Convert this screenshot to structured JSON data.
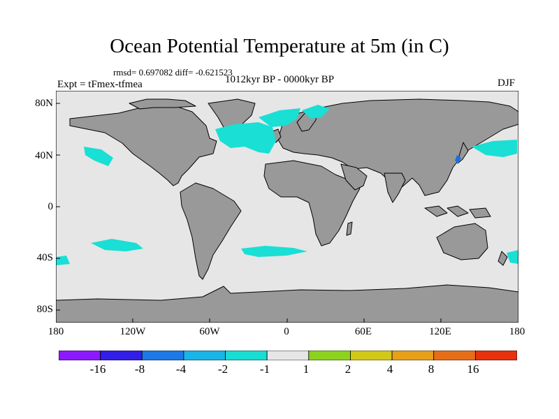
{
  "title": "Ocean Potential Temperature at 5m (in C)",
  "stats": "rmsd= 0.697082 diff= -0.621523",
  "period": "1012kyr BP - 0000kyr BP",
  "experiment": "Expt = tFmex-tfmea",
  "season": "DJF",
  "map": {
    "projection": "cylindrical-equidistant",
    "lon_range": [
      -180,
      180
    ],
    "lat_range": [
      -90,
      90
    ],
    "lat_ticks": [
      {
        "value": 80,
        "label": "80N"
      },
      {
        "value": 40,
        "label": "40N"
      },
      {
        "value": 0,
        "label": "0"
      },
      {
        "value": -40,
        "label": "40S"
      },
      {
        "value": -80,
        "label": "80S"
      }
    ],
    "lon_ticks": [
      {
        "value": -180,
        "label": "180"
      },
      {
        "value": -120,
        "label": "120W"
      },
      {
        "value": -60,
        "label": "60W"
      },
      {
        "value": 0,
        "label": "0"
      },
      {
        "value": 60,
        "label": "60E"
      },
      {
        "value": 120,
        "label": "120E"
      },
      {
        "value": 180,
        "label": "180"
      }
    ],
    "colors": {
      "ocean_neutral": "#e6e6e6",
      "land": "#999999",
      "cool_anomaly": "#19dfd5",
      "cold_anomaly": "#1ab4e6",
      "strong_cold_anomaly": "#1e6ee6"
    }
  },
  "colorbar": {
    "levels": [
      "-16",
      "-8",
      "-4",
      "-2",
      "-1",
      "1",
      "2",
      "4",
      "8",
      "16"
    ],
    "colors": [
      "#8c1aff",
      "#321ee6",
      "#1e78e6",
      "#1ab4e6",
      "#19dcd2",
      "#e6e6e6",
      "#8cd21e",
      "#d2c81a",
      "#e6a01a",
      "#e66e19",
      "#e6320f"
    ]
  }
}
